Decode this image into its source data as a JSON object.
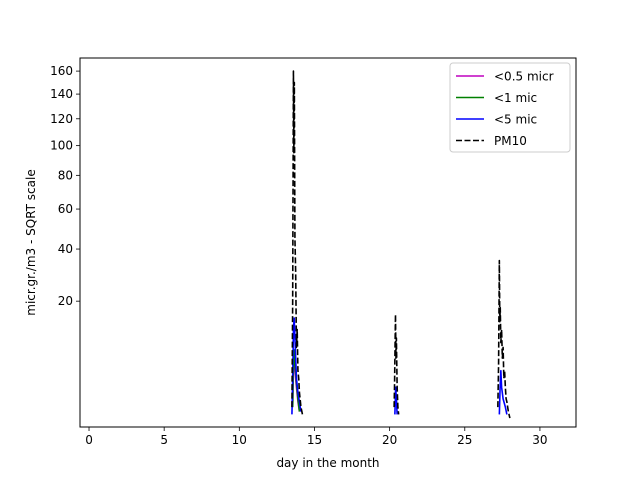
{
  "chart_data": {
    "type": "line",
    "title": "",
    "xlabel": "day in the month",
    "ylabel": "micr.gr./m3 - SQRT scale",
    "y_scale": "sqrt",
    "xlim": [
      -0.6,
      32.4
    ],
    "ylim": [
      0,
      172
    ],
    "x_ticks": [
      0,
      5,
      10,
      15,
      20,
      25,
      30
    ],
    "x_tick_labels": [
      "0",
      "5",
      "10",
      "15",
      "20",
      "25",
      "30"
    ],
    "y_ticks": [
      20,
      40,
      60,
      80,
      100,
      120,
      140,
      160
    ],
    "y_tick_labels": [
      "20",
      "40",
      "60",
      "80",
      "100",
      "120",
      "140",
      "160"
    ],
    "grid": false,
    "legend_position": "upper-right",
    "series": [
      {
        "name": "<0.5 micr",
        "color": "#bf00bf",
        "dash": "solid",
        "x": [
          13.55,
          13.6,
          13.65,
          13.7,
          13.8,
          13.9,
          14.0
        ],
        "y": [
          0.5,
          4.5,
          6.5,
          4.0,
          2.0,
          0.8,
          0.3
        ]
      },
      {
        "name": "<1 mic",
        "color": "#008000",
        "dash": "solid",
        "x": [
          13.55,
          13.6,
          13.65,
          13.7,
          13.8,
          13.9,
          14.0
        ],
        "y": [
          0.5,
          5.5,
          7.5,
          5.0,
          2.5,
          1.0,
          0.3
        ]
      },
      {
        "name": "<5 mic",
        "color": "#0000ff",
        "dash": "solid",
        "x": [
          13.5,
          13.55,
          13.6,
          13.65,
          13.7,
          13.75,
          13.8,
          13.9,
          14.0,
          14.1,
          20.35,
          20.4,
          20.45,
          20.5,
          27.3,
          27.35,
          27.4,
          27.45,
          27.55,
          27.7,
          27.8
        ],
        "y": [
          0.2,
          3.0,
          12.0,
          15.0,
          10.0,
          6.0,
          3.0,
          1.5,
          0.8,
          0.3,
          0.2,
          2.0,
          1.0,
          0.2,
          0.2,
          2.0,
          4.0,
          2.0,
          1.0,
          0.5,
          0.2
        ],
        "segments": [
          [
            0,
            10
          ],
          [
            10,
            14
          ],
          [
            14,
            21
          ]
        ]
      },
      {
        "name": "PM10",
        "color": "#000000",
        "dash": "dashed",
        "x": [
          13.5,
          13.55,
          13.6,
          13.63,
          13.66,
          13.7,
          13.75,
          13.8,
          13.85,
          13.9,
          13.95,
          14.0,
          14.1,
          14.2,
          20.3,
          20.33,
          20.36,
          20.39,
          20.42,
          20.45,
          20.5,
          20.55,
          20.6,
          27.2,
          27.25,
          27.3,
          27.33,
          27.36,
          27.4,
          27.45,
          27.5,
          27.55,
          27.6,
          27.65,
          27.7,
          27.75,
          27.8,
          27.9,
          28.0
        ],
        "y": [
          0.5,
          20.0,
          160.0,
          95.0,
          150.0,
          45.0,
          30.0,
          8.0,
          12.0,
          4.0,
          3.0,
          1.5,
          0.5,
          0.2,
          0.5,
          2.5,
          8.0,
          16.0,
          6.0,
          10.0,
          2.0,
          0.5,
          0.2,
          0.5,
          5.0,
          35.0,
          14.0,
          18.0,
          9.0,
          12.0,
          6.0,
          8.0,
          3.0,
          4.0,
          2.0,
          1.0,
          0.8,
          0.3,
          0.1
        ],
        "segments": [
          [
            0,
            14
          ],
          [
            14,
            23
          ],
          [
            23,
            39
          ]
        ]
      }
    ]
  }
}
